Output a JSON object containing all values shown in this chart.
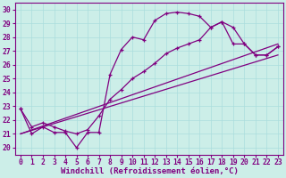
{
  "xlabel": "Windchill (Refroidissement éolien,°C)",
  "bg_color": "#cceee8",
  "line_color": "#800080",
  "marker": "+",
  "xlim": [
    -0.5,
    23.5
  ],
  "ylim": [
    19.5,
    30.5
  ],
  "xticks": [
    0,
    1,
    2,
    3,
    4,
    5,
    6,
    7,
    8,
    9,
    10,
    11,
    12,
    13,
    14,
    15,
    16,
    17,
    18,
    19,
    20,
    21,
    22,
    23
  ],
  "yticks": [
    20,
    21,
    22,
    23,
    24,
    25,
    26,
    27,
    28,
    29,
    30
  ],
  "grid_color": "#aadddd",
  "xlabel_fontsize": 6.5,
  "tick_fontsize": 5.8,
  "series1": {
    "x": [
      0,
      1,
      2,
      3,
      4,
      5,
      6,
      7,
      8,
      9,
      10,
      11,
      12,
      13,
      14,
      15,
      16,
      17,
      18,
      19,
      20,
      21,
      22,
      23
    ],
    "y": [
      22.8,
      21.0,
      21.5,
      21.1,
      21.1,
      20.0,
      21.1,
      21.1,
      25.3,
      27.1,
      28.0,
      27.8,
      29.2,
      29.7,
      29.8,
      29.7,
      29.5,
      28.7,
      29.1,
      28.7,
      27.5,
      26.7,
      26.7,
      27.3
    ]
  },
  "series2": {
    "x": [
      0,
      1,
      2,
      3,
      4,
      5,
      6,
      7,
      8,
      9,
      10,
      11,
      12,
      13,
      14,
      15,
      16,
      17,
      18,
      19,
      20,
      21,
      22,
      23
    ],
    "y": [
      22.8,
      21.5,
      21.8,
      21.5,
      21.2,
      21.0,
      21.3,
      22.3,
      23.5,
      24.2,
      25.0,
      25.5,
      26.1,
      26.8,
      27.2,
      27.5,
      27.8,
      28.7,
      29.1,
      27.5,
      27.5,
      26.7,
      26.7,
      27.3
    ]
  },
  "series3": {
    "x": [
      0,
      23
    ],
    "y": [
      21.0,
      27.5
    ]
  },
  "series4": {
    "x": [
      0,
      23
    ],
    "y": [
      21.0,
      26.7
    ]
  }
}
